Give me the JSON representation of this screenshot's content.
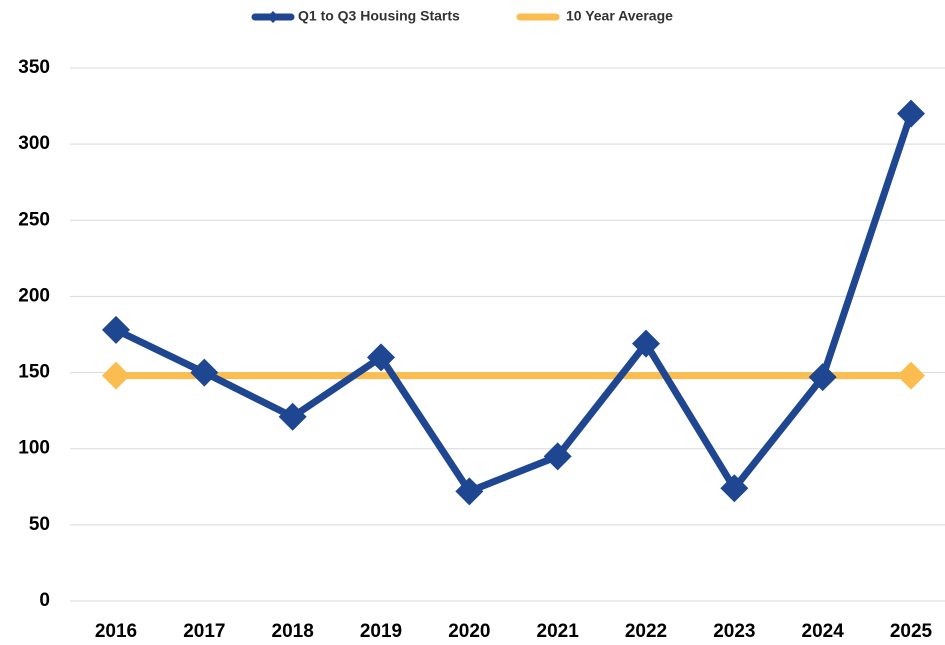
{
  "chart_data": {
    "type": "line",
    "categories": [
      "2016",
      "2017",
      "2018",
      "2019",
      "2020",
      "2021",
      "2022",
      "2023",
      "2024",
      "2025"
    ],
    "series": [
      {
        "name": "Q1 to Q3 Housing Starts",
        "color": "#1f4690",
        "values": [
          178,
          150,
          121,
          160,
          72,
          95,
          169,
          74,
          147,
          320
        ]
      },
      {
        "name": "10 Year Average",
        "color": "#fbbd4f",
        "values": [
          148,
          148,
          148,
          148,
          148,
          148,
          148,
          148,
          148,
          148
        ]
      }
    ],
    "ylim": [
      0,
      350
    ],
    "yticks": [
      0,
      50,
      100,
      150,
      200,
      250,
      300,
      350
    ],
    "grid": true,
    "legend": "top"
  }
}
